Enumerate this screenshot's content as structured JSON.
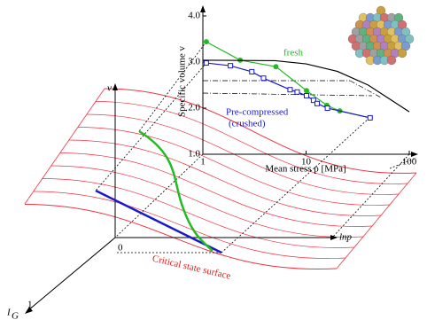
{
  "chart_data": {
    "type": "line",
    "xlabel": "Mean stress p [MPa]",
    "ylabel": "Specific volume v",
    "xscale": "log",
    "xlim": [
      1,
      100
    ],
    "ylim": [
      1.0,
      4.0
    ],
    "xticks": [
      1,
      10,
      100
    ],
    "yticks": [
      {
        "value": 1,
        "label": "1.0"
      },
      {
        "value": 2,
        "label": "2.0"
      },
      {
        "value": 3,
        "label": "3.0"
      },
      {
        "value": 4,
        "label": "4.0"
      }
    ],
    "series": [
      {
        "name": "fresh",
        "color": "#22bb22",
        "marker": "circle",
        "x": [
          1.08,
          2.3,
          5.1,
          10.1,
          15.9,
          21.2,
          41.7
        ],
        "values": [
          3.44,
          3.04,
          2.9,
          2.38,
          2.06,
          1.94,
          1.79
        ]
      },
      {
        "name": "Pre-compressed (crushed)",
        "color": "#1a1acc",
        "marker": "square",
        "x": [
          1.08,
          1.85,
          2.98,
          3.87,
          7.0,
          8.2,
          10.1,
          11.8,
          12.8,
          16.1,
          41.7
        ],
        "values": [
          2.98,
          2.92,
          2.79,
          2.65,
          2.4,
          2.35,
          2.27,
          2.17,
          2.1,
          2.0,
          1.79
        ]
      },
      {
        "color": "#000000",
        "marker": "none",
        "x": [
          1,
          5,
          10,
          20,
          40,
          100
        ],
        "values": [
          3.04,
          3.03,
          2.96,
          2.8,
          2.5,
          1.92
        ]
      }
    ],
    "annotations": [
      {
        "text": "fresh"
      },
      {
        "text": [
          "Pre-compressed",
          "(crushed)"
        ]
      }
    ]
  },
  "diagram": {
    "v_axis": "v",
    "origin": "0",
    "x_axis": "lnp",
    "ig_axis": "I",
    "ig_sub": "G",
    "ig_unit": "1",
    "surface_label": "Critical state surface"
  }
}
